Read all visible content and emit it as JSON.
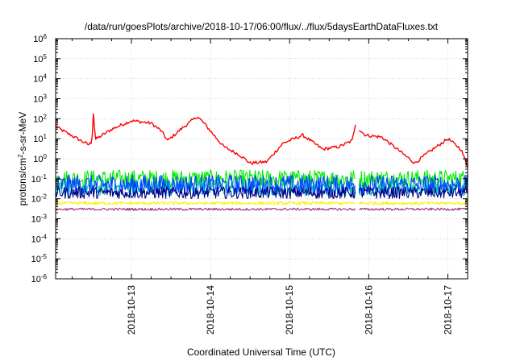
{
  "chart_data": {
    "type": "line",
    "title": "/data/run/goesPlots/archive/2018-10-17/06:00/flux/../flux/5daysEarthDataFluxes.txt",
    "xlabel": "Coordinated Universal Time (UTC)",
    "ylabel": "protons/cm²-s-sr-MeV",
    "ylabel_parts": {
      "base": "protons/cm",
      "sup": "2",
      "rest": "-s-sr-MeV"
    },
    "y_scale": "log",
    "ylim_exponent": [
      -6,
      6
    ],
    "yticks": [
      {
        "base": "10",
        "exp": "-6"
      },
      {
        "base": "10",
        "exp": "-5"
      },
      {
        "base": "10",
        "exp": "-4"
      },
      {
        "base": "10",
        "exp": "-3"
      },
      {
        "base": "10",
        "exp": "-2"
      },
      {
        "base": "10",
        "exp": "-1"
      },
      {
        "base": "10",
        "exp": "0"
      },
      {
        "base": "10",
        "exp": "1"
      },
      {
        "base": "10",
        "exp": "2"
      },
      {
        "base": "10",
        "exp": "3"
      },
      {
        "base": "10",
        "exp": "4"
      },
      {
        "base": "10",
        "exp": "5"
      },
      {
        "base": "10",
        "exp": "6"
      }
    ],
    "xlim": [
      "2018-10-12 01:00",
      "2018-10-17 06:00"
    ],
    "xticks": [
      "2018-10-13",
      "2018-10-14",
      "2018-10-15",
      "2018-10-16",
      "2018-10-17"
    ],
    "grid": true,
    "legend": "none",
    "data_gap": [
      "2018-10-15 20:00",
      "2018-10-15 21:00"
    ],
    "series": [
      {
        "color": "#ff0000",
        "noise_decades": 0.08,
        "points": [
          [
            "2018-10-12 01:00",
            40
          ],
          [
            "2018-10-12 06:00",
            14
          ],
          [
            "2018-10-12 11:00",
            5
          ],
          [
            "2018-10-12 12:00",
            7
          ],
          [
            "2018-10-12 12:30",
            250
          ],
          [
            "2018-10-12 13:00",
            9
          ],
          [
            "2018-10-12 18:00",
            30
          ],
          [
            "2018-10-13 00:00",
            80
          ],
          [
            "2018-10-13 06:00",
            60
          ],
          [
            "2018-10-13 09:00",
            25
          ],
          [
            "2018-10-13 11:00",
            8
          ],
          [
            "2018-10-13 15:00",
            30
          ],
          [
            "2018-10-13 20:00",
            130
          ],
          [
            "2018-10-13 22:00",
            60
          ],
          [
            "2018-10-14 04:00",
            4
          ],
          [
            "2018-10-14 09:00",
            1.5
          ],
          [
            "2018-10-14 12:00",
            0.6
          ],
          [
            "2018-10-14 17:00",
            0.7
          ],
          [
            "2018-10-14 22:00",
            6
          ],
          [
            "2018-10-15 04:00",
            15
          ],
          [
            "2018-10-15 10:00",
            3
          ],
          [
            "2018-10-15 15:00",
            4
          ],
          [
            "2018-10-15 19:00",
            8
          ],
          [
            "2018-10-15 20:00",
            60
          ],
          [
            "2018-10-15 21:00",
            30
          ],
          [
            "2018-10-15 23:00",
            15
          ],
          [
            "2018-10-16 04:00",
            12
          ],
          [
            "2018-10-16 10:00",
            2
          ],
          [
            "2018-10-16 14:00",
            0.6
          ],
          [
            "2018-10-16 18:00",
            2
          ],
          [
            "2018-10-17 00:00",
            10
          ],
          [
            "2018-10-17 04:00",
            3
          ],
          [
            "2018-10-17 06:00",
            0.4
          ]
        ]
      },
      {
        "color": "#00ee00",
        "noise_decades": 0.45,
        "points": [
          [
            "2018-10-12 01:00",
            0.1
          ],
          [
            "2018-10-17 06:00",
            0.1
          ]
        ]
      },
      {
        "color": "#00bbbb",
        "noise_decades": 0.4,
        "points": [
          [
            "2018-10-12 01:00",
            0.035
          ],
          [
            "2018-10-17 06:00",
            0.035
          ]
        ]
      },
      {
        "color": "#0044ff",
        "noise_decades": 0.5,
        "points": [
          [
            "2018-10-12 01:00",
            0.05
          ],
          [
            "2018-10-17 06:00",
            0.05
          ]
        ]
      },
      {
        "color": "#000088",
        "noise_decades": 0.3,
        "points": [
          [
            "2018-10-12 01:00",
            0.02
          ],
          [
            "2018-10-17 06:00",
            0.02
          ]
        ]
      },
      {
        "color": "#ffee00",
        "noise_decades": 0.08,
        "points": [
          [
            "2018-10-12 01:00",
            0.006
          ],
          [
            "2018-10-17 06:00",
            0.006
          ]
        ]
      },
      {
        "color": "#993377",
        "noise_decades": 0.06,
        "points": [
          [
            "2018-10-12 01:00",
            0.003
          ],
          [
            "2018-10-17 06:00",
            0.003
          ]
        ]
      }
    ]
  }
}
